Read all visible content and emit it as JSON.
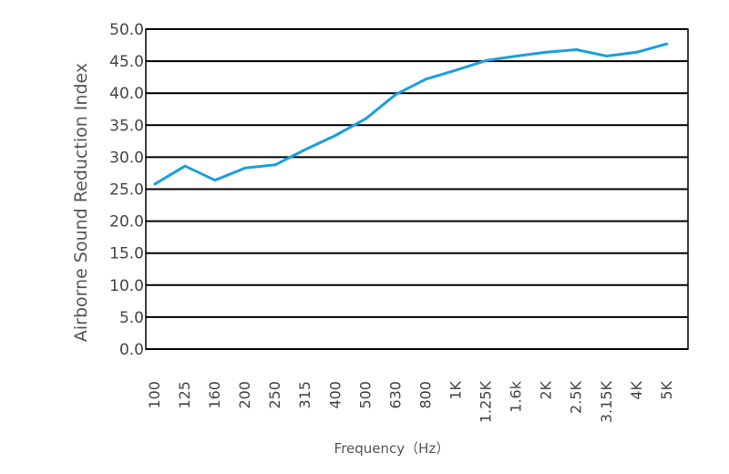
{
  "chart_data": {
    "type": "line",
    "title": "",
    "xlabel": "Frequency（Hz）",
    "ylabel": "Airborne Sound Reduction Index",
    "categories": [
      "100",
      "125",
      "160",
      "200",
      "250",
      "315",
      "400",
      "500",
      "630",
      "800",
      "1K",
      "1.25K",
      "1.6k",
      "2K",
      "2.5K",
      "3.15K",
      "4K",
      "5K"
    ],
    "yticks": [
      "0.0",
      "5.0",
      "10.0",
      "15.0",
      "20.0",
      "25.0",
      "30.0",
      "35.0",
      "40.0",
      "45.0",
      "50.0"
    ],
    "ylim": [
      0,
      50
    ],
    "grid": "horizontal",
    "series": [
      {
        "color": "#1a9fe0",
        "values": [
          25.8,
          28.6,
          26.4,
          28.3,
          28.8,
          31.2,
          33.4,
          36.0,
          39.8,
          42.2,
          43.6,
          45.1,
          45.8,
          46.4,
          46.8,
          45.8,
          46.4,
          47.7
        ]
      }
    ]
  }
}
